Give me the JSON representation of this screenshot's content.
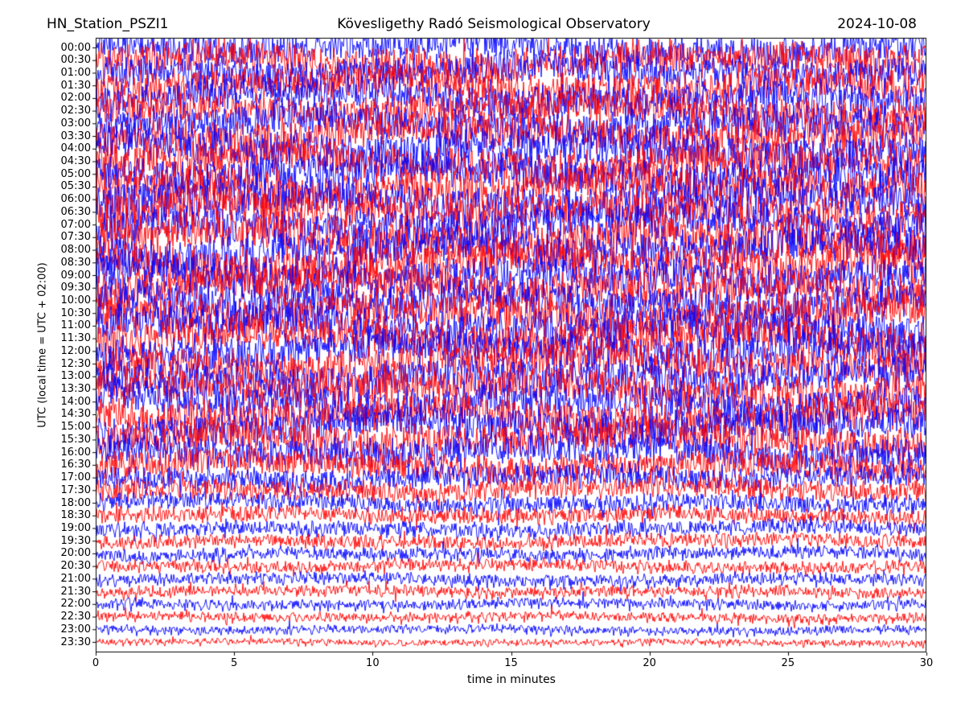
{
  "title": {
    "left": "HN_Station_PSZI1",
    "center": "Kövesligethy Radó Seismological Observatory",
    "right": "2024-10-08"
  },
  "axes": {
    "xlabel": "time in minutes",
    "ylabel": "UTC (local time = UTC + 02:00)",
    "x_tick_labels": [
      "0",
      "5",
      "10",
      "15",
      "20",
      "25",
      "30"
    ],
    "x_tick_minutes": [
      0,
      5,
      10,
      15,
      20,
      25,
      30
    ]
  },
  "colors": {
    "trace_blue": "#0000ff",
    "trace_red": "#ff0000",
    "frame": "#000000",
    "grid": "#b3b3b3",
    "text": "#000000",
    "background": "#ffffff"
  },
  "chart_data": {
    "type": "line",
    "variant": "helicorder-dayplot",
    "title": "HN_Station_PSZI1 — Kövesligethy Radó Seismological Observatory — 2024-10-08",
    "xlabel": "time in minutes",
    "ylabel": "UTC (local time = UTC + 02:00)",
    "x_range_minutes": [
      0,
      30
    ],
    "minutes_per_row": 30,
    "rows_count": 48,
    "grid": {
      "vertical_dotted_every_min": 5,
      "horizontal": false
    },
    "legend": "none",
    "trace_colors_alternate": [
      "#0000ff",
      "#ff0000"
    ],
    "rows": [
      {
        "utc": "00:00",
        "color": "#0000ff",
        "amplitude": 0.8
      },
      {
        "utc": "00:30",
        "color": "#ff0000",
        "amplitude": 0.85
      },
      {
        "utc": "01:00",
        "color": "#0000ff",
        "amplitude": 0.82
      },
      {
        "utc": "01:30",
        "color": "#ff0000",
        "amplitude": 0.88
      },
      {
        "utc": "02:00",
        "color": "#0000ff",
        "amplitude": 0.85
      },
      {
        "utc": "02:30",
        "color": "#ff0000",
        "amplitude": 0.8
      },
      {
        "utc": "03:00",
        "color": "#0000ff",
        "amplitude": 0.85
      },
      {
        "utc": "03:30",
        "color": "#ff0000",
        "amplitude": 0.9
      },
      {
        "utc": "04:00",
        "color": "#0000ff",
        "amplitude": 0.95
      },
      {
        "utc": "04:30",
        "color": "#ff0000",
        "amplitude": 0.92
      },
      {
        "utc": "05:00",
        "color": "#0000ff",
        "amplitude": 0.95
      },
      {
        "utc": "05:30",
        "color": "#ff0000",
        "amplitude": 0.98
      },
      {
        "utc": "06:00",
        "color": "#0000ff",
        "amplitude": 1.0
      },
      {
        "utc": "06:30",
        "color": "#ff0000",
        "amplitude": 0.98
      },
      {
        "utc": "07:00",
        "color": "#0000ff",
        "amplitude": 0.95
      },
      {
        "utc": "07:30",
        "color": "#ff0000",
        "amplitude": 0.98
      },
      {
        "utc": "08:00",
        "color": "#0000ff",
        "amplitude": 1.0
      },
      {
        "utc": "08:30",
        "color": "#ff0000",
        "amplitude": 0.98
      },
      {
        "utc": "09:00",
        "color": "#0000ff",
        "amplitude": 0.95
      },
      {
        "utc": "09:30",
        "color": "#ff0000",
        "amplitude": 0.92
      },
      {
        "utc": "10:00",
        "color": "#0000ff",
        "amplitude": 0.95
      },
      {
        "utc": "10:30",
        "color": "#ff0000",
        "amplitude": 0.95
      },
      {
        "utc": "11:00",
        "color": "#0000ff",
        "amplitude": 0.92
      },
      {
        "utc": "11:30",
        "color": "#ff0000",
        "amplitude": 0.9
      },
      {
        "utc": "12:00",
        "color": "#0000ff",
        "amplitude": 0.92
      },
      {
        "utc": "12:30",
        "color": "#ff0000",
        "amplitude": 0.9
      },
      {
        "utc": "13:00",
        "color": "#0000ff",
        "amplitude": 0.88
      },
      {
        "utc": "13:30",
        "color": "#ff0000",
        "amplitude": 0.9
      },
      {
        "utc": "14:00",
        "color": "#0000ff",
        "amplitude": 0.88
      },
      {
        "utc": "14:30",
        "color": "#ff0000",
        "amplitude": 0.85
      },
      {
        "utc": "15:00",
        "color": "#0000ff",
        "amplitude": 0.85
      },
      {
        "utc": "15:30",
        "color": "#ff0000",
        "amplitude": 0.82
      },
      {
        "utc": "16:00",
        "color": "#0000ff",
        "amplitude": 0.78
      },
      {
        "utc": "16:30",
        "color": "#ff0000",
        "amplitude": 0.72
      },
      {
        "utc": "17:00",
        "color": "#0000ff",
        "amplitude": 0.62
      },
      {
        "utc": "17:30",
        "color": "#ff0000",
        "amplitude": 0.55
      },
      {
        "utc": "18:00",
        "color": "#0000ff",
        "amplitude": 0.47
      },
      {
        "utc": "18:30",
        "color": "#ff0000",
        "amplitude": 0.42
      },
      {
        "utc": "19:00",
        "color": "#0000ff",
        "amplitude": 0.38
      },
      {
        "utc": "19:30",
        "color": "#ff0000",
        "amplitude": 0.35
      },
      {
        "utc": "20:00",
        "color": "#0000ff",
        "amplitude": 0.33
      },
      {
        "utc": "20:30",
        "color": "#ff0000",
        "amplitude": 0.31
      },
      {
        "utc": "21:00",
        "color": "#0000ff",
        "amplitude": 0.3
      },
      {
        "utc": "21:30",
        "color": "#ff0000",
        "amplitude": 0.28
      },
      {
        "utc": "22:00",
        "color": "#0000ff",
        "amplitude": 0.26
      },
      {
        "utc": "22:30",
        "color": "#ff0000",
        "amplitude": 0.23
      },
      {
        "utc": "23:00",
        "color": "#0000ff",
        "amplitude": 0.2
      },
      {
        "utc": "23:30",
        "color": "#ff0000",
        "amplitude": 0.15
      }
    ]
  }
}
